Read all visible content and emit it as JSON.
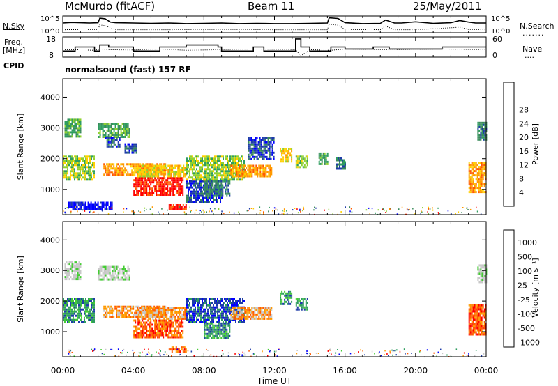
{
  "header": {
    "station": "McMurdo (fitACF)",
    "beam": "Beam 11",
    "date": "25/May/2011"
  },
  "side_labels": {
    "nsky": "N.Sky",
    "nsearch": "N.Search",
    "freq_line1": "Freq.",
    "freq_line2": "[MHz]",
    "nave": "Nave",
    "cpid": "CPID"
  },
  "cpid_text": "normalsound (fast) 157 RF",
  "colors": {
    "power_scale": [
      "#0000ff",
      "#1e3ca8",
      "#3a8a5a",
      "#2f9d5f",
      "#8fd130",
      "#ffd000",
      "#ff9900",
      "#ff5a00",
      "#ff0000"
    ],
    "velocity_scale": [
      "#ff0000",
      "#ff5a00",
      "#ff9900",
      "#c8c8c8",
      "#c8c8c8",
      "#44cc33",
      "#2f9d5f",
      "#1e3ca8",
      "#0000ff"
    ]
  },
  "chart_data": [
    {
      "type": "line",
      "panel": "noise",
      "title": "",
      "ylabel_left": "N.Sky",
      "ylabel_right": "N.Search",
      "left_ticks": [
        "10^5",
        "10^0"
      ],
      "right_ticks": [
        "10^5",
        "10^0"
      ],
      "xlim": [
        0,
        24
      ],
      "series": [
        {
          "name": "N.Sky",
          "style": "solid",
          "x": [
            0,
            0.5,
            1,
            1.5,
            2,
            2.1,
            2.4,
            2.7,
            3,
            4,
            5,
            6,
            7,
            8,
            9,
            10,
            11,
            12,
            13,
            14,
            15,
            15.1,
            15.6,
            16,
            17,
            18,
            18.3,
            18.8,
            19.2,
            20,
            21,
            22,
            22.5,
            23,
            23.4,
            24
          ],
          "y": [
            3.2,
            3.4,
            3.3,
            3.2,
            3.3,
            4.8,
            4.6,
            3.5,
            3.3,
            3.2,
            3.1,
            3.2,
            3.0,
            3.1,
            3.2,
            3.0,
            3.1,
            3.0,
            3.0,
            3.1,
            3.2,
            4.9,
            4.7,
            3.3,
            3.0,
            3.1,
            4.2,
            3.2,
            3.2,
            3.6,
            3.1,
            3.3,
            4.0,
            3.5,
            3.2,
            3.2
          ]
        },
        {
          "name": "N.Search",
          "style": "dotted",
          "x": [
            0,
            2,
            2.1,
            2.4,
            3,
            6,
            9,
            12,
            15,
            15.1,
            15.6,
            16,
            18,
            18.3,
            18.8,
            20,
            22.5,
            23,
            24
          ],
          "y": [
            1.0,
            1.1,
            2.6,
            2.3,
            1.0,
            1.0,
            1.1,
            1.0,
            1.0,
            2.8,
            2.5,
            1.1,
            1.0,
            2.2,
            1.0,
            1.0,
            1.8,
            1.1,
            1.0
          ]
        }
      ]
    },
    {
      "type": "line",
      "panel": "freq-nave",
      "ylabel_left": "Freq. [MHz]",
      "ylabel_right": "Nave",
      "left_ticks": [
        18,
        8
      ],
      "right_ticks": [
        60,
        0
      ],
      "ylim_left": [
        8,
        18
      ],
      "ylim_right": [
        0,
        60
      ],
      "xlim": [
        0,
        24
      ],
      "series": [
        {
          "name": "Freq.",
          "style": "solid",
          "x": [
            0,
            0.7,
            0.7,
            1.8,
            1.8,
            2.1,
            2.1,
            2.6,
            2.6,
            4.0,
            4.0,
            5.5,
            5.5,
            7.0,
            7.0,
            8.8,
            8.8,
            9.0,
            9.0,
            10.8,
            10.8,
            11.4,
            11.4,
            13.2,
            13.2,
            13.5,
            13.5,
            14.0,
            14.0,
            15.2,
            15.2,
            16.0,
            16.0,
            17.6,
            17.6,
            18.5,
            18.5,
            21.5,
            21.5,
            24
          ],
          "y": [
            11,
            11,
            13,
            13,
            11,
            11,
            14,
            14,
            13,
            13,
            11,
            11,
            13,
            13,
            14,
            14,
            13,
            13,
            11,
            11,
            13,
            13,
            11,
            11,
            17,
            17,
            13,
            13,
            11,
            11,
            13,
            13,
            12,
            12,
            13,
            13,
            12,
            12,
            13,
            13
          ]
        },
        {
          "name": "Nave",
          "style": "dotted",
          "x": [
            0,
            0.7,
            1.8,
            2.1,
            2.6,
            4.0,
            5.5,
            7.0,
            8.8,
            10.8,
            13.2,
            13.5,
            14.0,
            15.2,
            16.0,
            18.5,
            21.5,
            24
          ],
          "y": [
            22,
            22,
            20,
            24,
            22,
            21,
            24,
            20,
            22,
            24,
            22,
            4,
            22,
            20,
            24,
            22,
            24,
            22
          ]
        }
      ]
    },
    {
      "type": "heatmap",
      "panel": "power",
      "ylabel": "Slant Range [km]",
      "yticks": [
        1000,
        2000,
        3000,
        4000
      ],
      "ylim": [
        180,
        4600
      ],
      "xlim": [
        0,
        24
      ],
      "colorbar": {
        "label": "Power [dB]",
        "ticks": [
          4,
          8,
          12,
          16,
          20,
          24,
          28
        ]
      },
      "echo_regions": [
        {
          "t": [
            0.0,
            1.8
          ],
          "r": [
            1300,
            2100
          ],
          "v": 16
        },
        {
          "t": [
            0.1,
            1.0
          ],
          "r": [
            2700,
            3300
          ],
          "v": 11
        },
        {
          "t": [
            0.3,
            2.8
          ],
          "r": [
            350,
            600
          ],
          "v": 4
        },
        {
          "t": [
            2.0,
            3.8
          ],
          "r": [
            2700,
            3150
          ],
          "v": 12
        },
        {
          "t": [
            2.3,
            5.8
          ],
          "r": [
            1500,
            1850
          ],
          "v": 22
        },
        {
          "t": [
            2.4,
            3.2
          ],
          "r": [
            2400,
            2700
          ],
          "v": 6
        },
        {
          "t": [
            3.5,
            4.2
          ],
          "r": [
            2200,
            2500
          ],
          "v": 5
        },
        {
          "t": [
            4.0,
            6.8
          ],
          "r": [
            800,
            1400
          ],
          "v": 26
        },
        {
          "t": [
            4.2,
            7.0
          ],
          "r": [
            1400,
            1800
          ],
          "v": 19
        },
        {
          "t": [
            6.0,
            7.0
          ],
          "r": [
            380,
            520
          ],
          "v": 28
        },
        {
          "t": [
            7.0,
            9.0
          ],
          "r": [
            600,
            1300
          ],
          "v": 7
        },
        {
          "t": [
            7.0,
            10.3
          ],
          "r": [
            1300,
            2100
          ],
          "v": 14
        },
        {
          "t": [
            8.0,
            9.5
          ],
          "r": [
            800,
            1300
          ],
          "v": 10
        },
        {
          "t": [
            9.5,
            11.8
          ],
          "r": [
            1400,
            1800
          ],
          "v": 20
        },
        {
          "t": [
            10.5,
            12.0
          ],
          "r": [
            2000,
            2700
          ],
          "v": 8
        },
        {
          "t": [
            12.3,
            13.0
          ],
          "r": [
            1900,
            2350
          ],
          "v": 18
        },
        {
          "t": [
            13.2,
            13.9
          ],
          "r": [
            1750,
            2100
          ],
          "v": 15
        },
        {
          "t": [
            14.5,
            15.0
          ],
          "r": [
            1850,
            2200
          ],
          "v": 12
        },
        {
          "t": [
            15.5,
            16.0
          ],
          "r": [
            1650,
            2050
          ],
          "v": 9
        },
        {
          "t": [
            23.0,
            24.0
          ],
          "r": [
            900,
            1900
          ],
          "v": 21
        },
        {
          "t": [
            23.5,
            24.0
          ],
          "r": [
            2600,
            3200
          ],
          "v": 10
        }
      ]
    },
    {
      "type": "heatmap",
      "panel": "velocity",
      "xlabel": "Time UT",
      "ylabel": "Slant Range [km]",
      "xticks": [
        "00:00",
        "04:00",
        "08:00",
        "12:00",
        "16:00",
        "20:00",
        "00:00"
      ],
      "yticks": [
        1000,
        2000,
        3000,
        4000
      ],
      "ylim": [
        180,
        4600
      ],
      "xlim": [
        0,
        24
      ],
      "colorbar": {
        "label": "Velocity [m s⁻¹]",
        "ticks": [
          1000,
          500,
          100,
          25,
          -25,
          -100,
          -500,
          -1000
        ]
      },
      "echo_regions": [
        {
          "t": [
            0.0,
            1.8
          ],
          "r": [
            1300,
            2100
          ],
          "v": 1.4
        },
        {
          "t": [
            0.1,
            1.0
          ],
          "r": [
            2700,
            3300
          ],
          "v": 0.2
        },
        {
          "t": [
            2.0,
            3.8
          ],
          "r": [
            2700,
            3150
          ],
          "v": 0.2
        },
        {
          "t": [
            2.3,
            5.8
          ],
          "r": [
            1500,
            1850
          ],
          "v": -1.3
        },
        {
          "t": [
            4.0,
            6.8
          ],
          "r": [
            800,
            1400
          ],
          "v": -1.6
        },
        {
          "t": [
            4.2,
            7.0
          ],
          "r": [
            1400,
            1800
          ],
          "v": -1.2
        },
        {
          "t": [
            6.0,
            7.0
          ],
          "r": [
            380,
            520
          ],
          "v": -1.4
        },
        {
          "t": [
            7.0,
            10.3
          ],
          "r": [
            1300,
            2100
          ],
          "v": 2.0
        },
        {
          "t": [
            8.0,
            9.5
          ],
          "r": [
            800,
            1300
          ],
          "v": 1.6
        },
        {
          "t": [
            9.5,
            11.8
          ],
          "r": [
            1400,
            1800
          ],
          "v": -1.3
        },
        {
          "t": [
            12.3,
            13.0
          ],
          "r": [
            1900,
            2350
          ],
          "v": 1.5
        },
        {
          "t": [
            13.2,
            13.9
          ],
          "r": [
            1750,
            2100
          ],
          "v": 1.3
        },
        {
          "t": [
            23.0,
            24.0
          ],
          "r": [
            900,
            1900
          ],
          "v": -1.5
        },
        {
          "t": [
            23.5,
            24.0
          ],
          "r": [
            2600,
            3200
          ],
          "v": 0.2
        }
      ]
    }
  ]
}
